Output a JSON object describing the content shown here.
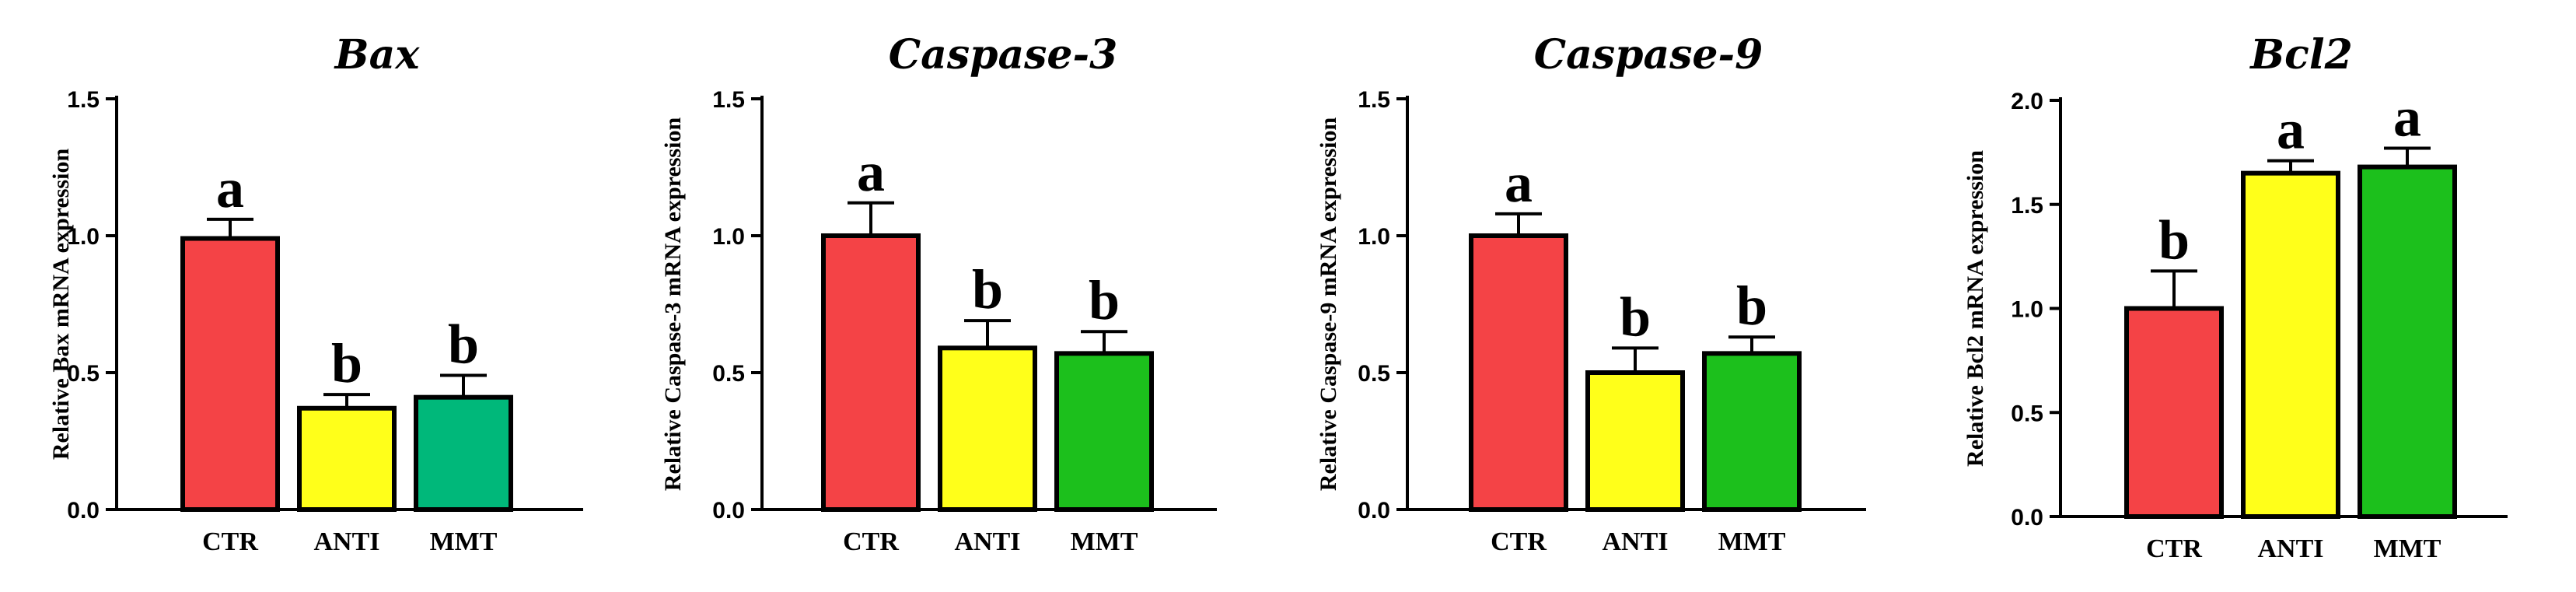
{
  "chart_data": [
    {
      "type": "bar",
      "title": "Bax",
      "ylabel": "Relative Bax mRNA expression",
      "xlabel": "",
      "categories": [
        "CTR",
        "ANTI",
        "MMT"
      ],
      "values": [
        0.99,
        0.37,
        0.41
      ],
      "errors": [
        0.07,
        0.05,
        0.08
      ],
      "letters": [
        "a",
        "b",
        "b"
      ],
      "colors": [
        "#f44346",
        "#ffff1a",
        "#00b87a"
      ],
      "ylim": [
        0,
        1.5
      ],
      "yticks": [
        0,
        0.5,
        1.0,
        1.5
      ],
      "ytick_labels": [
        "0.0",
        "0.5",
        "1.0",
        "1.5"
      ]
    },
    {
      "type": "bar",
      "title": "Caspase-3",
      "ylabel": "Relative Caspase-3 mRNA expression",
      "xlabel": "",
      "categories": [
        "CTR",
        "ANTI",
        "MMT"
      ],
      "values": [
        1.0,
        0.59,
        0.57
      ],
      "errors": [
        0.12,
        0.1,
        0.08
      ],
      "letters": [
        "a",
        "b",
        "b"
      ],
      "colors": [
        "#f44346",
        "#ffff1a",
        "#1cc01c"
      ],
      "ylim": [
        0,
        1.5
      ],
      "yticks": [
        0,
        0.5,
        1.0,
        1.5
      ],
      "ytick_labels": [
        "0.0",
        "0.5",
        "1.0",
        "1.5"
      ]
    },
    {
      "type": "bar",
      "title": "Caspase-9",
      "ylabel": "Relative Caspase-9 mRNA expression",
      "xlabel": "",
      "categories": [
        "CTR",
        "ANTI",
        "MMT"
      ],
      "values": [
        1.0,
        0.5,
        0.57
      ],
      "errors": [
        0.08,
        0.09,
        0.06
      ],
      "letters": [
        "a",
        "b",
        "b"
      ],
      "colors": [
        "#f44346",
        "#ffff1a",
        "#1cc01c"
      ],
      "ylim": [
        0,
        1.5
      ],
      "yticks": [
        0,
        0.5,
        1.0,
        1.5
      ],
      "ytick_labels": [
        "0.0",
        "0.5",
        "1.0",
        "1.5"
      ]
    },
    {
      "type": "bar",
      "title": "Bcl2",
      "ylabel": "Relative Bcl2 mRNA expression",
      "xlabel": "",
      "categories": [
        "CTR",
        "ANTI",
        "MMT"
      ],
      "values": [
        1.0,
        1.65,
        1.68
      ],
      "errors": [
        0.18,
        0.06,
        0.09
      ],
      "letters": [
        "b",
        "a",
        "a"
      ],
      "colors": [
        "#f44346",
        "#ffff1a",
        "#1cc01c"
      ],
      "ylim": [
        0,
        2.0
      ],
      "yticks": [
        0,
        0.5,
        1.0,
        1.5,
        2.0
      ],
      "ytick_labels": [
        "0.0",
        "0.5",
        "1.0",
        "1.5",
        "2.0"
      ]
    }
  ]
}
